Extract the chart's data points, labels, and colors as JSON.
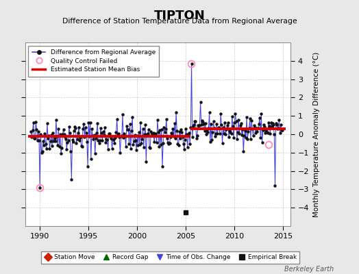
{
  "title": "TIPTON",
  "subtitle": "Difference of Station Temperature Data from Regional Average",
  "ylabel": "Monthly Temperature Anomaly Difference (°C)",
  "xlabel_ticks": [
    1990,
    1995,
    2000,
    2005,
    2010,
    2015
  ],
  "ylim": [
    -5,
    5
  ],
  "yticks": [
    -4,
    -3,
    -2,
    -1,
    0,
    1,
    2,
    3,
    4
  ],
  "xlim": [
    1988.5,
    2015.8
  ],
  "background_color": "#e8e8e8",
  "plot_bg_color": "#ffffff",
  "grid_color": "#cccccc",
  "line_color": "#4444dd",
  "marker_color": "#111111",
  "bias_color": "#dd0000",
  "bias_before": -0.1,
  "bias_after": 0.3,
  "bias_break_year": 2005.5,
  "qc_fail_1_x": 1990.0,
  "qc_fail_1_y": -2.9,
  "qc_fail_2_x": 2005.58,
  "qc_fail_2_y": 3.85,
  "qc_fail_3_x": 2013.5,
  "qc_fail_3_y": -0.55,
  "empirical_break_x": 2005.0,
  "empirical_break_y": -4.25,
  "watermark": "Berkeley Earth",
  "seed": 42
}
